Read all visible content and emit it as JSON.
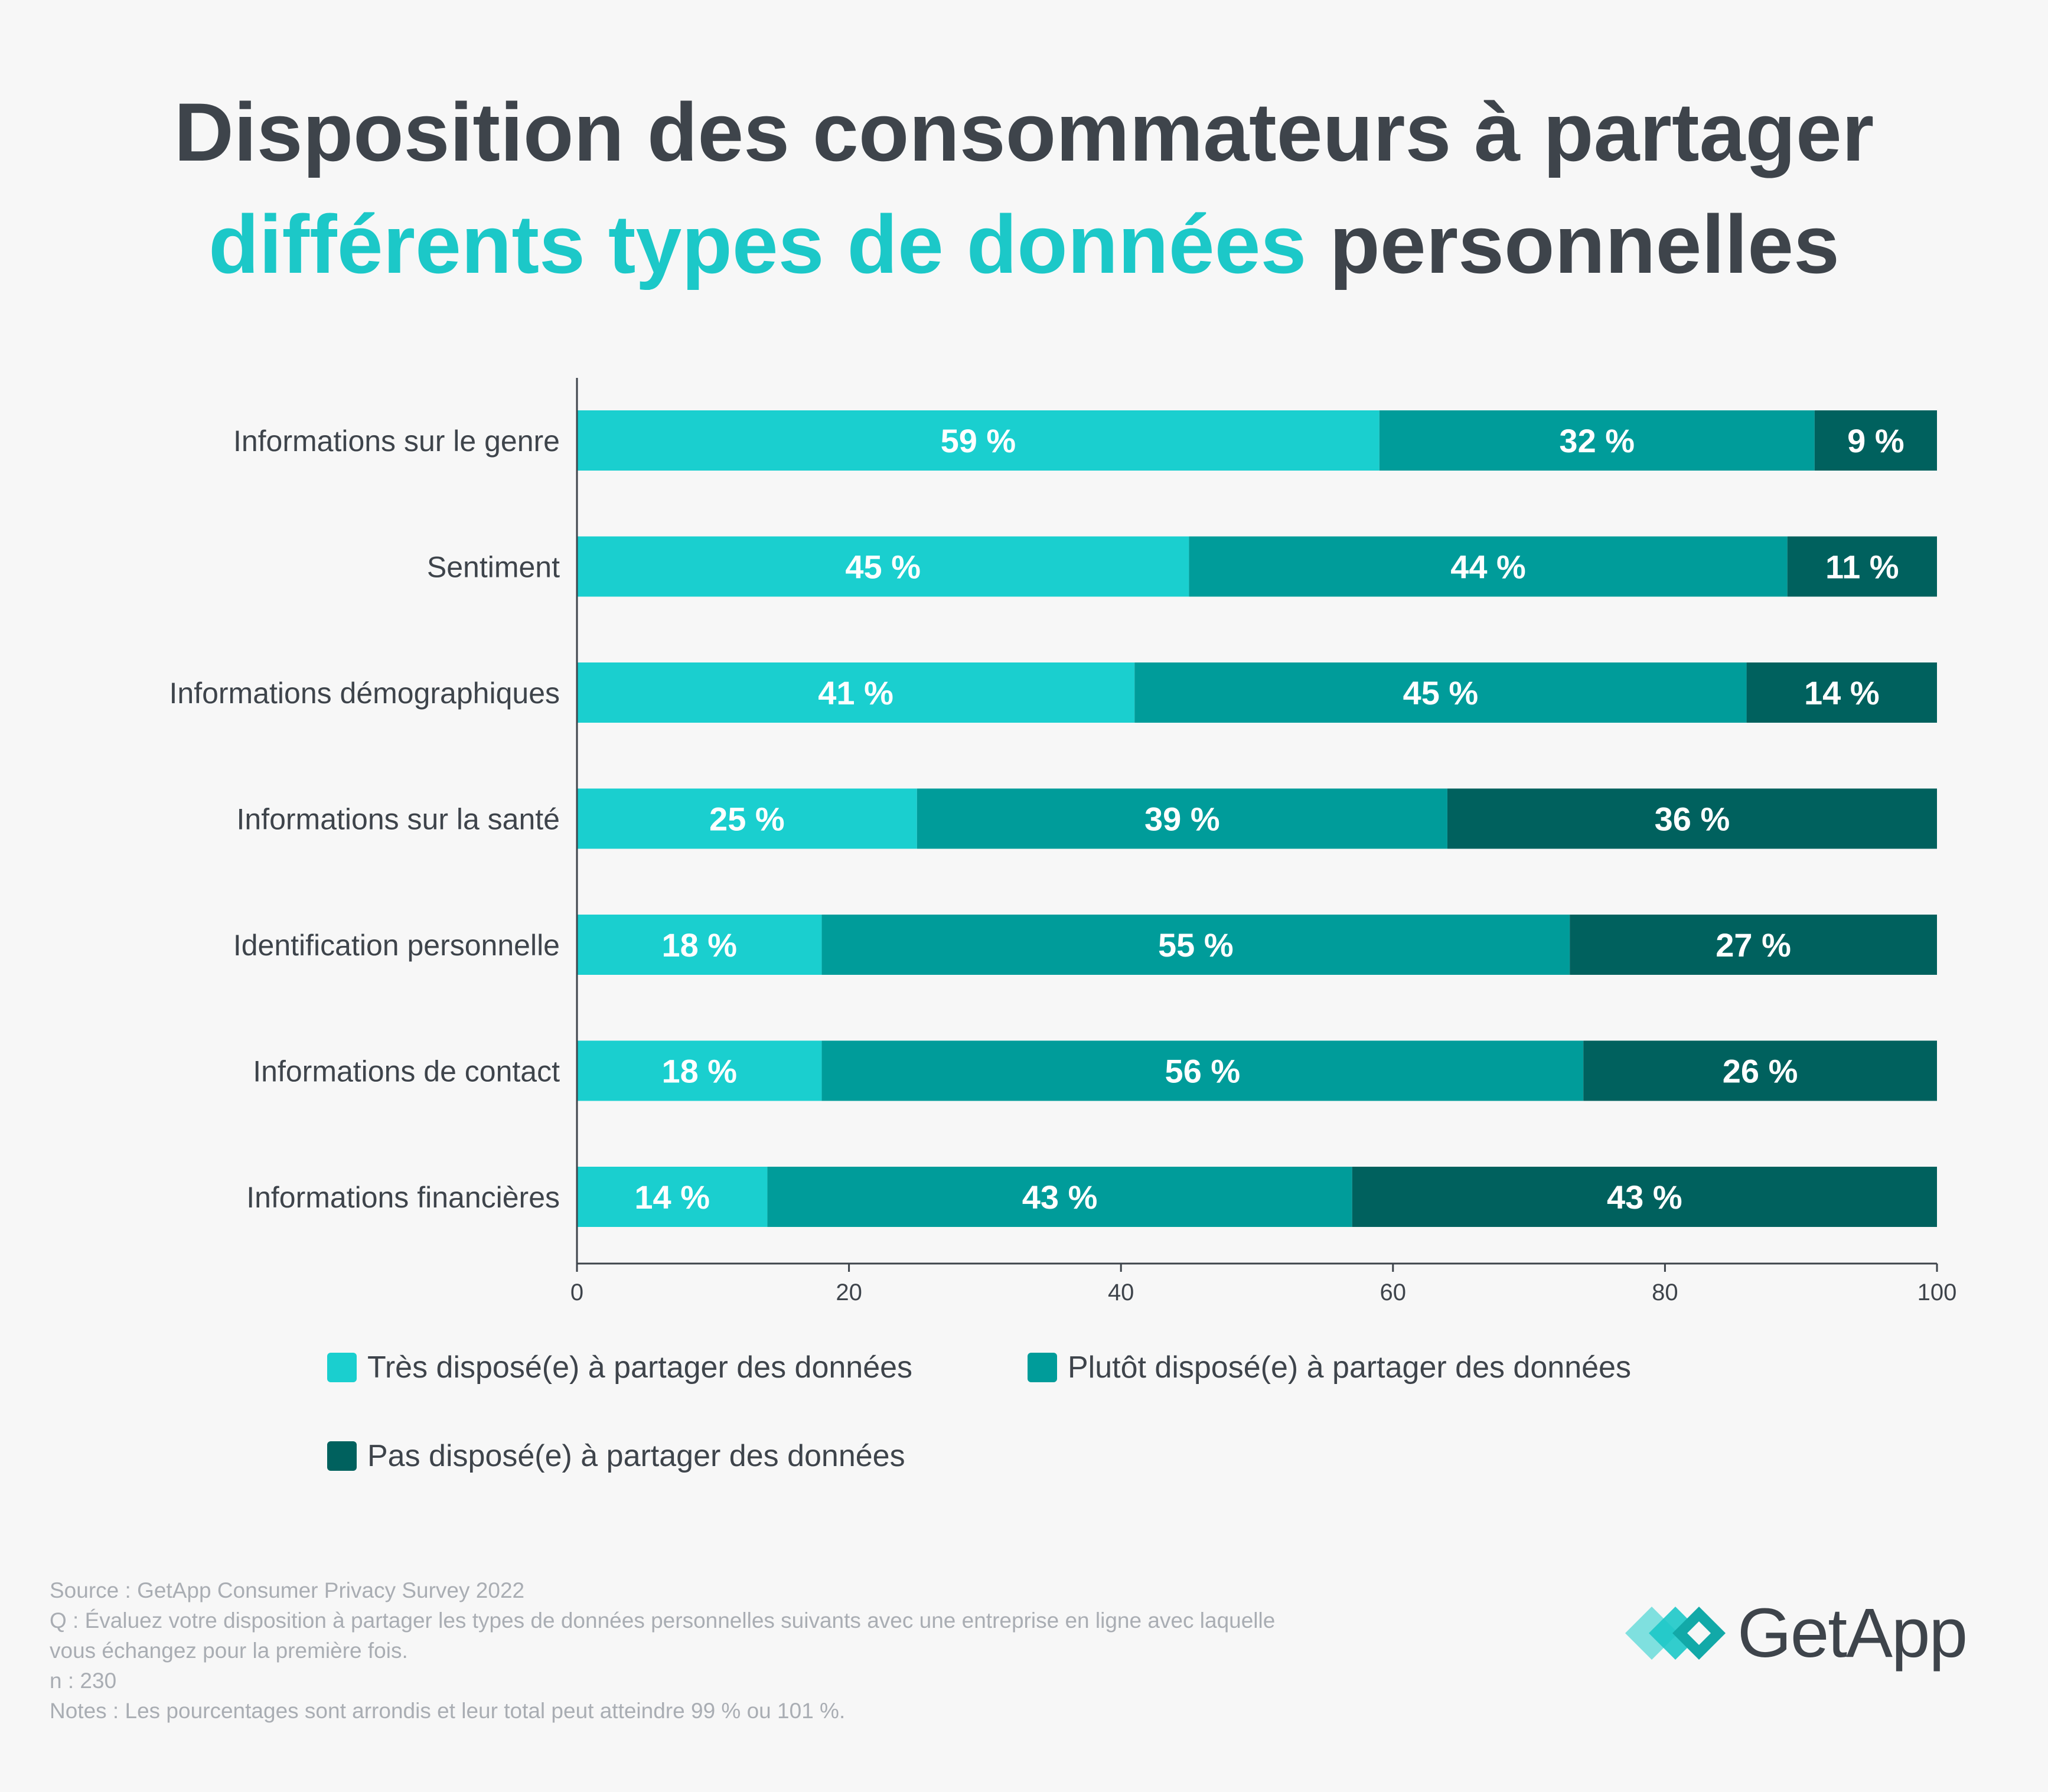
{
  "title": {
    "line1": "Disposition des consommateurs à partager",
    "line2_highlight": "différents types de données",
    "line2_rest": "personnelles"
  },
  "chart_data": {
    "type": "bar",
    "orientation": "horizontal",
    "stacked": true,
    "categories": [
      "Informations sur le genre",
      "Sentiment",
      "Informations démographiques",
      "Informations sur la santé",
      "Identification personnelle",
      "Informations de contact",
      "Informations financières"
    ],
    "series": [
      {
        "name": "Très disposé(e) à partager des données",
        "color": "#1acfcf",
        "values": [
          59,
          45,
          41,
          25,
          18,
          18,
          14
        ]
      },
      {
        "name": "Plutôt disposé(e) à partager des données",
        "color": "#009c9a",
        "values": [
          32,
          44,
          45,
          39,
          55,
          56,
          43
        ]
      },
      {
        "name": "Pas disposé(e) à partager des données",
        "color": "#00615e",
        "values": [
          9,
          11,
          14,
          36,
          27,
          26,
          43
        ]
      }
    ],
    "value_suffix": " %",
    "xlim": [
      0,
      100
    ],
    "xticks": [
      0,
      20,
      40,
      60,
      80,
      100
    ],
    "grid": false
  },
  "legend": [
    "Très disposé(e) à partager des données",
    "Plutôt disposé(e) à partager des données",
    "Pas disposé(e) à partager des données"
  ],
  "source": {
    "line1": "Source : GetApp Consumer Privacy Survey 2022",
    "line2": "Q : Évaluez votre disposition à partager les types de données personnelles suivants avec une entreprise en ligne avec laquelle",
    "line3": "vous échangez pour la première fois.",
    "line4": "n : 230",
    "line5": "Notes : Les pourcentages sont arrondis et leur total peut atteindre 99 % ou 101 %."
  },
  "logo": {
    "text": "GetApp"
  },
  "colors": {
    "accent": "#1cc8c8",
    "text": "#3e444b",
    "muted": "#a9adb3"
  }
}
